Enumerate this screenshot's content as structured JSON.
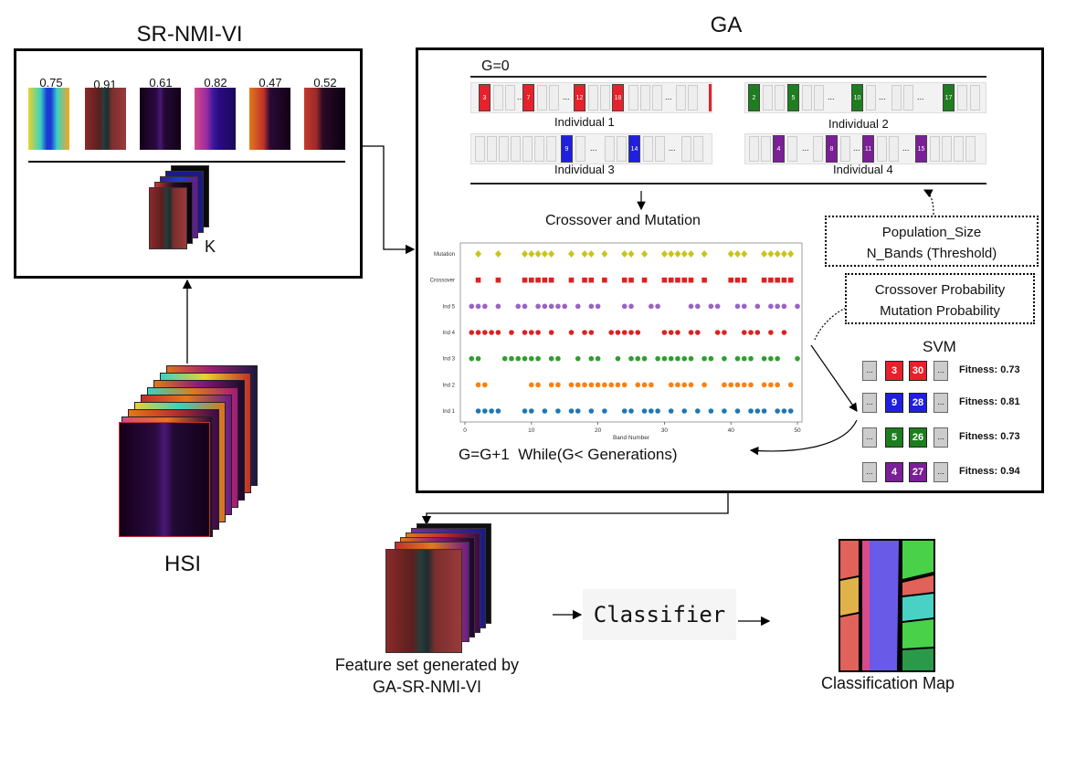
{
  "colors": {
    "red": "#e8202a",
    "green": "#1e7d1e",
    "blue": "#1f1fe0",
    "purple": "#7a1f96",
    "mutation": "#c9c41a",
    "crossover": "#e02020",
    "ind5": "#9b62c6",
    "ind4": "#e02020",
    "ind3": "#2ca02c",
    "ind2": "#ff7f0e",
    "ind1": "#1f77b4"
  },
  "srnmivi": {
    "title": "SR-NMI-VI",
    "scores": [
      "0.75",
      "0.91",
      "0.61",
      "0.82",
      "0.47",
      "0.52"
    ],
    "k_label": "K"
  },
  "hsi": {
    "label": "HSI"
  },
  "ga": {
    "title": "GA",
    "g0_label": "G=0",
    "individuals": [
      {
        "label": "Individual 1",
        "color": "red",
        "genes": [
          "3",
          "7",
          "12",
          "18"
        ],
        "dots": [
          "...",
          "...",
          "...",
          "..."
        ]
      },
      {
        "label": "Individual 2",
        "color": "green",
        "genes": [
          "2",
          "5",
          "10",
          "17"
        ],
        "dots": [
          "...",
          "...",
          "..."
        ]
      },
      {
        "label": "Individual 3",
        "color": "blue",
        "genes": [
          "9",
          "14"
        ],
        "dots": [
          "...",
          "...",
          "..."
        ]
      },
      {
        "label": "Individual 4",
        "color": "purple",
        "genes": [
          "4",
          "8",
          "11",
          "15"
        ],
        "dots": [
          "...",
          "...",
          "..."
        ]
      }
    ],
    "crossover_title": "Crossover and Mutation",
    "loop_label": "G=G+1  While(G< Generations)",
    "params1": [
      "Population_Size",
      "N_Bands (Threshold)"
    ],
    "params2": [
      "Crossover Probability",
      "Mutation Probability"
    ],
    "svm": {
      "title": "SVM",
      "dots": "...",
      "rows": [
        {
          "a": "3",
          "b": "30",
          "color": "red",
          "fitness": "Fitness: 0.73"
        },
        {
          "a": "9",
          "b": "28",
          "color": "blue",
          "fitness": "Fitness: 0.81"
        },
        {
          "a": "5",
          "b": "26",
          "color": "green",
          "fitness": "Fitness: 0.73"
        },
        {
          "a": "4",
          "b": "27",
          "color": "purple",
          "fitness": "Fitness: 0.94"
        }
      ]
    }
  },
  "chart_data": {
    "type": "scatter",
    "xlabel": "Band Number",
    "xlim": [
      0,
      50
    ],
    "xticks": [
      "0",
      "10",
      "20",
      "30",
      "40",
      "50"
    ],
    "series": [
      {
        "name": "Mutation",
        "marker": "diamond",
        "color": "mutation",
        "x": [
          2,
          5,
          9,
          10,
          11,
          12,
          13,
          16,
          18,
          19,
          21,
          24,
          25,
          27,
          30,
          31,
          32,
          33,
          34,
          36,
          40,
          41,
          42,
          45,
          46,
          47,
          48,
          49
        ]
      },
      {
        "name": "Crossover",
        "marker": "square",
        "color": "crossover",
        "x": [
          2,
          5,
          9,
          10,
          11,
          12,
          13,
          16,
          18,
          19,
          21,
          24,
          25,
          27,
          30,
          31,
          32,
          33,
          34,
          36,
          40,
          41,
          42,
          45,
          46,
          47,
          48,
          49
        ]
      },
      {
        "name": "Ind 5",
        "marker": "circle",
        "color": "ind5",
        "x": [
          1,
          2,
          3,
          5,
          8,
          9,
          11,
          12,
          13,
          14,
          15,
          17,
          19,
          20,
          24,
          25,
          28,
          29,
          34,
          35,
          37,
          38,
          41,
          42,
          44,
          46,
          47,
          48,
          50
        ]
      },
      {
        "name": "Ind 4",
        "marker": "circle",
        "color": "ind4",
        "x": [
          1,
          2,
          3,
          4,
          5,
          7,
          9,
          10,
          11,
          13,
          16,
          18,
          19,
          22,
          23,
          24,
          25,
          26,
          30,
          31,
          32,
          34,
          35,
          38,
          39,
          42,
          43,
          44,
          46,
          48
        ]
      },
      {
        "name": "Ind 3",
        "marker": "circle",
        "color": "ind3",
        "x": [
          1,
          2,
          6,
          7,
          8,
          9,
          10,
          11,
          13,
          14,
          17,
          19,
          20,
          23,
          25,
          26,
          27,
          29,
          30,
          31,
          32,
          33,
          34,
          36,
          37,
          39,
          41,
          42,
          43,
          45,
          46,
          47,
          50
        ]
      },
      {
        "name": "Ind 2",
        "marker": "circle",
        "color": "ind2",
        "x": [
          2,
          3,
          10,
          11,
          13,
          14,
          16,
          17,
          18,
          19,
          20,
          21,
          22,
          23,
          24,
          26,
          27,
          28,
          31,
          32,
          33,
          34,
          36,
          39,
          40,
          41,
          42,
          43,
          45,
          46,
          47,
          49
        ]
      },
      {
        "name": "Ind 1",
        "marker": "circle",
        "color": "ind1",
        "x": [
          2,
          3,
          4,
          5,
          9,
          10,
          12,
          14,
          16,
          17,
          19,
          21,
          24,
          25,
          27,
          28,
          29,
          31,
          33,
          35,
          37,
          39,
          41,
          43,
          44,
          45,
          47,
          48,
          49
        ]
      }
    ]
  },
  "output": {
    "feature_caption_line1": "Feature set generated by",
    "feature_caption_line2": "GA-SR-NMI-VI",
    "classifier_label": "Classifier",
    "map_caption": "Classification Map"
  }
}
